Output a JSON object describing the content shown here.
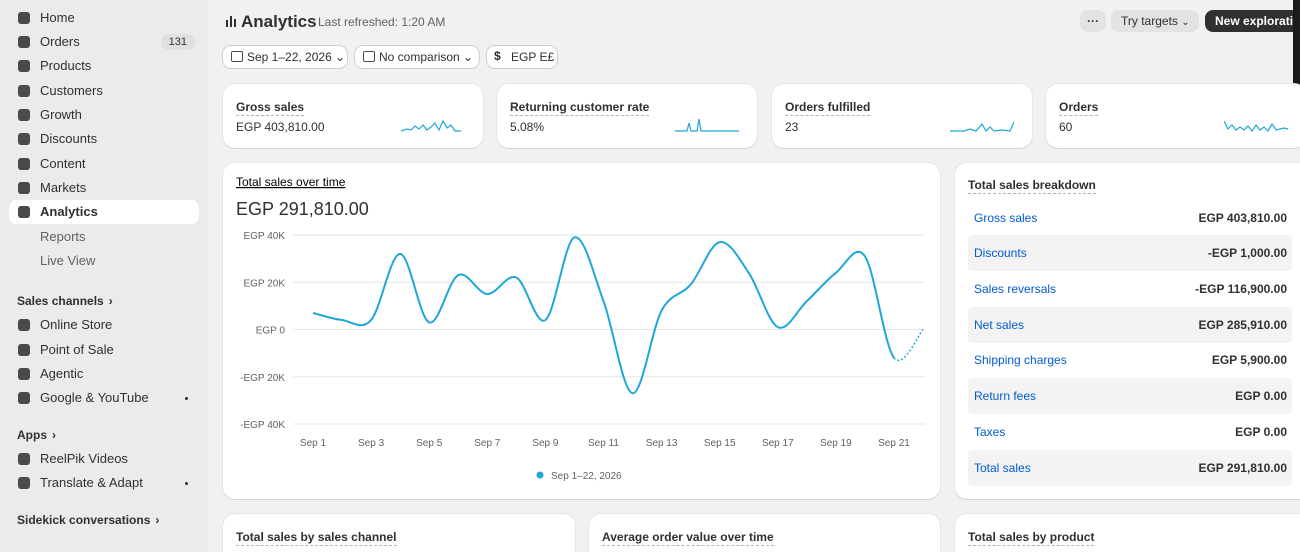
{
  "sidebar": {
    "main": [
      "Home",
      "Orders",
      "Products",
      "Customers",
      "Growth",
      "Discounts",
      "Content",
      "Markets",
      "Analytics"
    ],
    "orders_badge": 131,
    "analytics_sub": [
      "Reports",
      "Live View"
    ],
    "sales_channels": {
      "title": "Sales channels",
      "items": [
        "Online Store",
        "Point of Sale",
        "Agentic",
        "Google & YouTube"
      ]
    },
    "apps": {
      "title": "Apps",
      "items": [
        "ReelPik Videos",
        "Translate & Adapt"
      ]
    },
    "sidekick": "Sidekick conversations"
  },
  "header": {
    "title": "Analytics",
    "refreshed": "Last refreshed: 1:20 AM",
    "more": "···",
    "try_targets": "Try targets",
    "new_exploration": "New exploration"
  },
  "filters": [
    "Sep 1–22, 2026",
    "No comparison",
    "EGP E£"
  ],
  "kpis": [
    {
      "label": "Gross sales",
      "value": "EGP 403,810.00"
    },
    {
      "label": "Returning customer rate",
      "value": "5.08%"
    },
    {
      "label": "Orders fulfilled",
      "value": "23"
    },
    {
      "label": "Orders",
      "value": "60"
    }
  ],
  "chart_data": {
    "type": "line",
    "title": "Total sales over time",
    "total": "EGP 291,810.00",
    "categories": [
      "Sep 1",
      null,
      "Sep 3",
      null,
      "Sep 5",
      null,
      "Sep 7",
      null,
      "Sep 9",
      null,
      "Sep 11",
      null,
      "Sep 13",
      null,
      "Sep 15",
      null,
      "Sep 17",
      null,
      "Sep 19",
      null,
      "Sep 21",
      null
    ],
    "series": [
      {
        "name": "Sep 1–22, 2026",
        "color": "#1fa7d8",
        "values": [
          7000,
          4000,
          4000,
          32000,
          3000,
          23000,
          15000,
          22000,
          4000,
          39000,
          12000,
          -27000,
          8000,
          19000,
          37000,
          24000,
          1000,
          12000,
          24000,
          31000,
          -12000,
          0
        ]
      }
    ],
    "ylim": [
      -40000,
      40000
    ],
    "yticks": [
      {
        "value": 40000,
        "label": "EGP 40K"
      },
      {
        "value": 20000,
        "label": "EGP 20K"
      },
      {
        "value": 0,
        "label": "EGP 0"
      },
      {
        "value": -20000,
        "label": "-EGP 20K"
      },
      {
        "value": -40000,
        "label": "-EGP 40K"
      }
    ],
    "grid": true
  },
  "breakdown": {
    "title": "Total sales breakdown",
    "rows": [
      [
        "Gross sales",
        "EGP 403,810.00"
      ],
      [
        "Discounts",
        "-EGP 1,000.00"
      ],
      [
        "Sales reversals",
        "-EGP 116,900.00"
      ],
      [
        "Net sales",
        "EGP 285,910.00"
      ],
      [
        "Shipping charges",
        "EGP 5,900.00"
      ],
      [
        "Return fees",
        "EGP 0.00"
      ],
      [
        "Taxes",
        "EGP 0.00"
      ],
      [
        "Total sales",
        "EGP 291,810.00"
      ]
    ]
  },
  "bottom_cards": [
    "Total sales by sales channel",
    "Average order value over time",
    "Total sales by product"
  ]
}
